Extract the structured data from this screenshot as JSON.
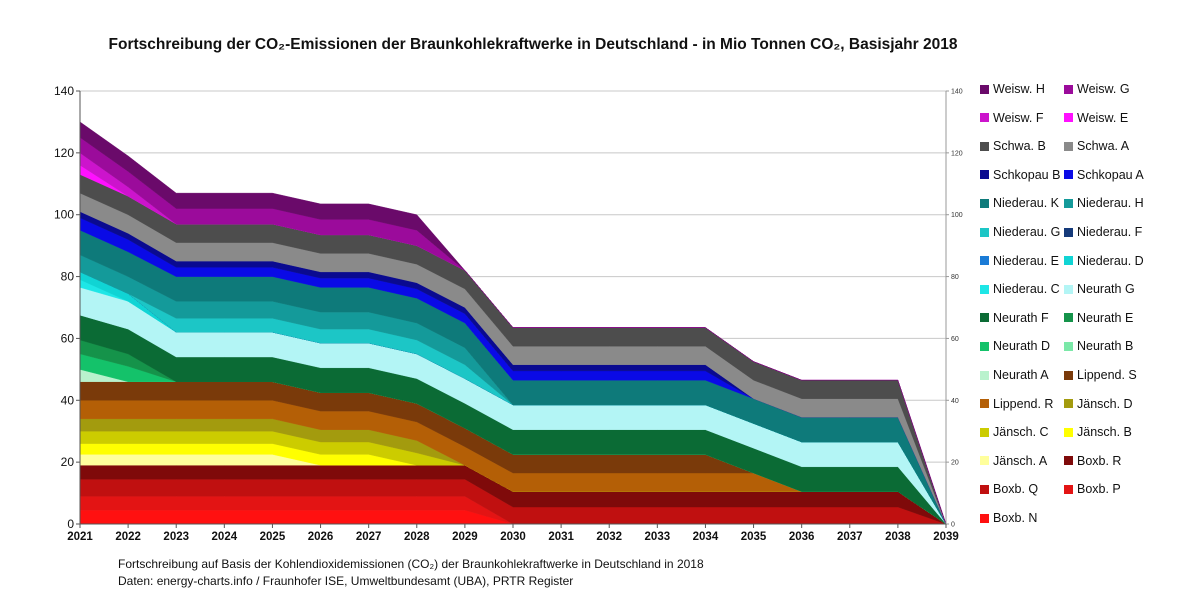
{
  "footnote": {
    "line1": "Fortschreibung auf Basis der Kohlendioxidemissionen (CO₂) der Braunkohlekraftwerke in Deutschland in 2018",
    "line2": "Daten: energy-charts.info / Fraunhofer ISE, Umweltbundesamt (UBA), PRTR Register"
  },
  "chart_data": {
    "type": "area",
    "stacked": true,
    "title": "Fortschreibung der CO₂-Emissionen der Braunkohlekraftwerke in Deutschland - in Mio Tonnen CO₂, Basisjahr 2018",
    "xlabel": "",
    "ylabel": "",
    "ylim": [
      0,
      140
    ],
    "y_ticks": [
      0,
      20,
      40,
      60,
      80,
      100,
      120,
      140
    ],
    "y2_ticks": [
      0,
      20,
      40,
      60,
      80,
      100,
      120,
      140
    ],
    "x": [
      2021,
      2022,
      2023,
      2024,
      2025,
      2026,
      2027,
      2028,
      2029,
      2030,
      2031,
      2032,
      2033,
      2034,
      2035,
      2036,
      2037,
      2038,
      2039
    ],
    "grid": true,
    "legend_position": "right",
    "series": [
      {
        "name": "Boxb. N",
        "color": "#ff1010",
        "values": [
          4.5,
          4.5,
          4.5,
          4.5,
          4.5,
          4.5,
          4.5,
          4.5,
          4.5,
          0,
          0,
          0,
          0,
          0,
          0,
          0,
          0,
          0,
          0
        ]
      },
      {
        "name": "Boxb. P",
        "color": "#e31414",
        "values": [
          4.5,
          4.5,
          4.5,
          4.5,
          4.5,
          4.5,
          4.5,
          4.5,
          4.5,
          0,
          0,
          0,
          0,
          0,
          0,
          0,
          0,
          0,
          0
        ]
      },
      {
        "name": "Boxb. Q",
        "color": "#c01010",
        "values": [
          5.5,
          5.5,
          5.5,
          5.5,
          5.5,
          5.5,
          5.5,
          5.5,
          5.5,
          5.5,
          5.5,
          5.5,
          5.5,
          5.5,
          5.5,
          5.5,
          5.5,
          5.5,
          0
        ]
      },
      {
        "name": "Boxb. R",
        "color": "#7f0a0a",
        "values": [
          4.5,
          4.5,
          4.5,
          4.5,
          4.5,
          4.5,
          4.5,
          4.5,
          4.5,
          5,
          5,
          5,
          5,
          5,
          5,
          5,
          5,
          5,
          0
        ]
      },
      {
        "name": "Jänsch. A",
        "color": "#ffff9c",
        "values": [
          3.5,
          3.5,
          3.5,
          3.5,
          3.5,
          0,
          0,
          0,
          0,
          0,
          0,
          0,
          0,
          0,
          0,
          0,
          0,
          0,
          0
        ]
      },
      {
        "name": "Jänsch. B",
        "color": "#ffff00",
        "values": [
          3.5,
          3.5,
          3.5,
          3.5,
          3.5,
          3.5,
          3.5,
          0,
          0,
          0,
          0,
          0,
          0,
          0,
          0,
          0,
          0,
          0,
          0
        ]
      },
      {
        "name": "Jänsch. C",
        "color": "#cccc00",
        "values": [
          4,
          4,
          4,
          4,
          4,
          4,
          4,
          4,
          0,
          0,
          0,
          0,
          0,
          0,
          0,
          0,
          0,
          0,
          0
        ]
      },
      {
        "name": "Jänsch. D",
        "color": "#a39b0e",
        "values": [
          4,
          4,
          4,
          4,
          4,
          4,
          4,
          4,
          0,
          0,
          0,
          0,
          0,
          0,
          0,
          0,
          0,
          0,
          0
        ]
      },
      {
        "name": "Lippend. R",
        "color": "#b45f06",
        "values": [
          6,
          6,
          6,
          6,
          6,
          6,
          6,
          6,
          6,
          6,
          6,
          6,
          6,
          6,
          6,
          0,
          0,
          0,
          0
        ]
      },
      {
        "name": "Lippend. S",
        "color": "#7a3a0a",
        "values": [
          6,
          6,
          6,
          6,
          6,
          6,
          6,
          6,
          6,
          6,
          6,
          6,
          6,
          6,
          0,
          0,
          0,
          0,
          0
        ]
      },
      {
        "name": "Neurath A",
        "color": "#b9f2cd",
        "values": [
          4,
          0,
          0,
          0,
          0,
          0,
          0,
          0,
          0,
          0,
          0,
          0,
          0,
          0,
          0,
          0,
          0,
          0,
          0
        ]
      },
      {
        "name": "Neurath B",
        "color": "#7be8a8",
        "values": [
          0,
          0,
          0,
          0,
          0,
          0,
          0,
          0,
          0,
          0,
          0,
          0,
          0,
          0,
          0,
          0,
          0,
          0,
          0
        ]
      },
      {
        "name": "Neurath D",
        "color": "#14c26a",
        "values": [
          5,
          5,
          0,
          0,
          0,
          0,
          0,
          0,
          0,
          0,
          0,
          0,
          0,
          0,
          0,
          0,
          0,
          0,
          0
        ]
      },
      {
        "name": "Neurath E",
        "color": "#15934a",
        "values": [
          4.5,
          4,
          0,
          0,
          0,
          0,
          0,
          0,
          0,
          0,
          0,
          0,
          0,
          0,
          0,
          0,
          0,
          0,
          0
        ]
      },
      {
        "name": "Neurath F",
        "color": "#0b6b35",
        "values": [
          8,
          8,
          8,
          8,
          8,
          8,
          8,
          8,
          8,
          8,
          8,
          8,
          8,
          8,
          8,
          8,
          8,
          8,
          0
        ]
      },
      {
        "name": "Neurath G",
        "color": "#b3f5f5",
        "values": [
          9,
          9,
          8,
          8,
          8,
          8,
          8,
          8,
          8,
          8,
          8,
          8,
          8,
          8,
          8,
          8,
          8,
          8,
          0
        ]
      },
      {
        "name": "Niederau. C",
        "color": "#1ee6e6",
        "values": [
          2.5,
          0,
          0,
          0,
          0,
          0,
          0,
          0,
          0,
          0,
          0,
          0,
          0,
          0,
          0,
          0,
          0,
          0,
          0
        ]
      },
      {
        "name": "Niederau. D",
        "color": "#10d4d4",
        "values": [
          2.5,
          2.5,
          0,
          0,
          0,
          0,
          0,
          0,
          0,
          0,
          0,
          0,
          0,
          0,
          0,
          0,
          0,
          0,
          0
        ]
      },
      {
        "name": "Niederau. E",
        "color": "#1a7bd6",
        "values": [
          0,
          0,
          0,
          0,
          0,
          0,
          0,
          0,
          0,
          0,
          0,
          0,
          0,
          0,
          0,
          0,
          0,
          0,
          0
        ]
      },
      {
        "name": "Niederau. F",
        "color": "#153a7a",
        "values": [
          0,
          0,
          0,
          0,
          0,
          0,
          0,
          0,
          0,
          0,
          0,
          0,
          0,
          0,
          0,
          0,
          0,
          0,
          0
        ]
      },
      {
        "name": "Niederau. G",
        "color": "#1cc6c6",
        "values": [
          0,
          0,
          4.5,
          4.5,
          4.5,
          4.5,
          4.5,
          4.5,
          4.5,
          0,
          0,
          0,
          0,
          0,
          0,
          0,
          0,
          0,
          0
        ]
      },
      {
        "name": "Niederau. H",
        "color": "#149a9a",
        "values": [
          5.5,
          5.5,
          5.5,
          5.5,
          5.5,
          5.5,
          5.5,
          5.5,
          5.5,
          0,
          0,
          0,
          0,
          0,
          0,
          0,
          0,
          0,
          0
        ]
      },
      {
        "name": "Niederau. K",
        "color": "#0e7a7a",
        "values": [
          8,
          8,
          8,
          8,
          8,
          8,
          8,
          8,
          8,
          8,
          8,
          8,
          8,
          8,
          8,
          8,
          8,
          8,
          0
        ]
      },
      {
        "name": "Schkopau A",
        "color": "#0a0ae6",
        "values": [
          4,
          4,
          3,
          3,
          3,
          3,
          3,
          3,
          3,
          3,
          3,
          3,
          3,
          3,
          0,
          0,
          0,
          0,
          0
        ]
      },
      {
        "name": "Schkopau B",
        "color": "#0a0a90",
        "values": [
          2,
          2,
          2,
          2,
          2,
          2,
          2,
          2,
          2,
          2,
          2,
          2,
          2,
          2,
          0,
          0,
          0,
          0,
          0
        ]
      },
      {
        "name": "Schwa. A",
        "color": "#8a8a8a",
        "values": [
          6,
          6,
          6,
          6,
          6,
          6,
          6,
          6,
          6,
          6,
          6,
          6,
          6,
          6,
          6,
          6,
          6,
          6,
          0
        ]
      },
      {
        "name": "Schwa. B",
        "color": "#4d4d4d",
        "values": [
          6,
          6,
          6,
          6,
          6,
          6,
          6,
          6,
          6,
          6,
          6,
          6,
          6,
          6,
          6,
          6,
          6,
          6,
          0
        ]
      },
      {
        "name": "Weisw. E",
        "color": "#ff10ff",
        "values": [
          3,
          0,
          0,
          0,
          0,
          0,
          0,
          0,
          0,
          0,
          0,
          0,
          0,
          0,
          0,
          0,
          0,
          0,
          0
        ]
      },
      {
        "name": "Weisw. F",
        "color": "#cc14cc",
        "values": [
          4,
          3,
          0,
          0,
          0,
          0,
          0,
          0,
          0,
          0,
          0,
          0,
          0,
          0,
          0,
          0,
          0,
          0,
          0
        ]
      },
      {
        "name": "Weisw. G",
        "color": "#9b0b9b",
        "values": [
          5,
          5,
          5,
          5,
          5,
          5,
          5,
          5,
          0,
          0,
          0,
          0,
          0,
          0,
          0,
          0,
          0,
          0,
          0
        ]
      },
      {
        "name": "Weisw. H",
        "color": "#6a0a6a",
        "values": [
          5,
          5,
          5,
          5,
          5,
          5,
          5,
          5,
          0,
          0,
          0,
          0,
          0,
          0,
          0,
          0,
          0,
          0,
          0
        ]
      }
    ],
    "legend_order": [
      "Weisw. H",
      "Weisw. G",
      "Weisw. F",
      "Weisw. E",
      "Schwa. B",
      "Schwa. A",
      "Schkopau B",
      "Schkopau A",
      "Niederau. K",
      "Niederau. H",
      "Niederau. G",
      "Niederau. F",
      "Niederau. E",
      "Niederau. D",
      "Niederau. C",
      "Neurath G",
      "Neurath F",
      "Neurath E",
      "Neurath D",
      "Neurath B",
      "Neurath A",
      "Lippend. S",
      "Lippend. R",
      "Jänsch. D",
      "Jänsch. C",
      "Jänsch. B",
      "Jänsch. A",
      "Boxb. R",
      "Boxb. Q",
      "Boxb. P",
      "Boxb. N"
    ]
  }
}
